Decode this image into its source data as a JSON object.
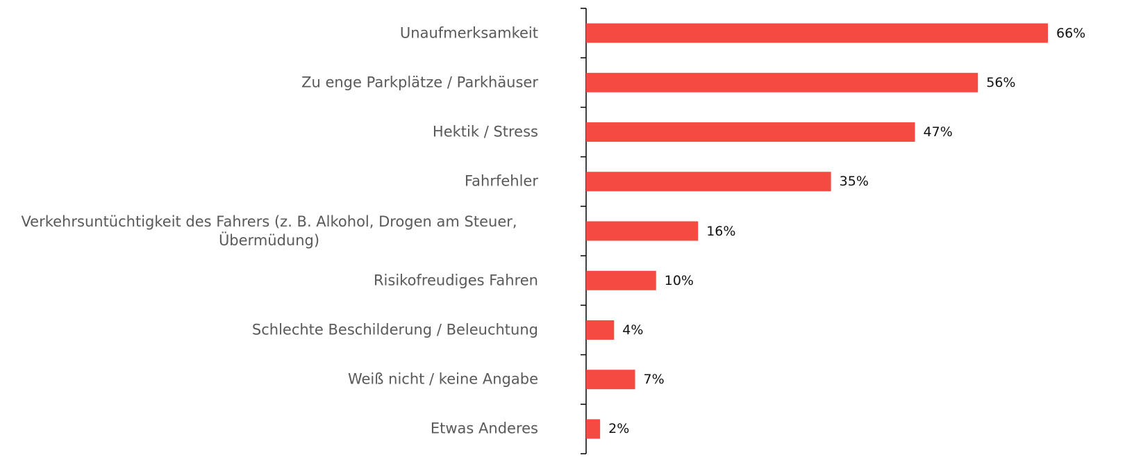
{
  "chart_data": {
    "type": "bar",
    "orientation": "horizontal",
    "categories": [
      "Unaufmerksamkeit",
      "Zu enge Parkplätze / Parkhäuser",
      "Hektik / Stress",
      "Fahrfehler",
      "Verkehrsuntüchtigkeit des Fahrers (z. B. Alkohol, Drogen am Steuer, Übermüdung)",
      "Risikofreudiges Fahren",
      "Schlechte Beschilderung / Beleuchtung",
      "Weiß nicht / keine Angabe",
      "Etwas Anderes"
    ],
    "values": [
      66,
      56,
      47,
      35,
      16,
      10,
      4,
      7,
      2
    ],
    "value_labels": [
      "66%",
      "56%",
      "47%",
      "35%",
      "16%",
      "10%",
      "4%",
      "7%",
      "2%"
    ],
    "color": "#f44a41"
  }
}
